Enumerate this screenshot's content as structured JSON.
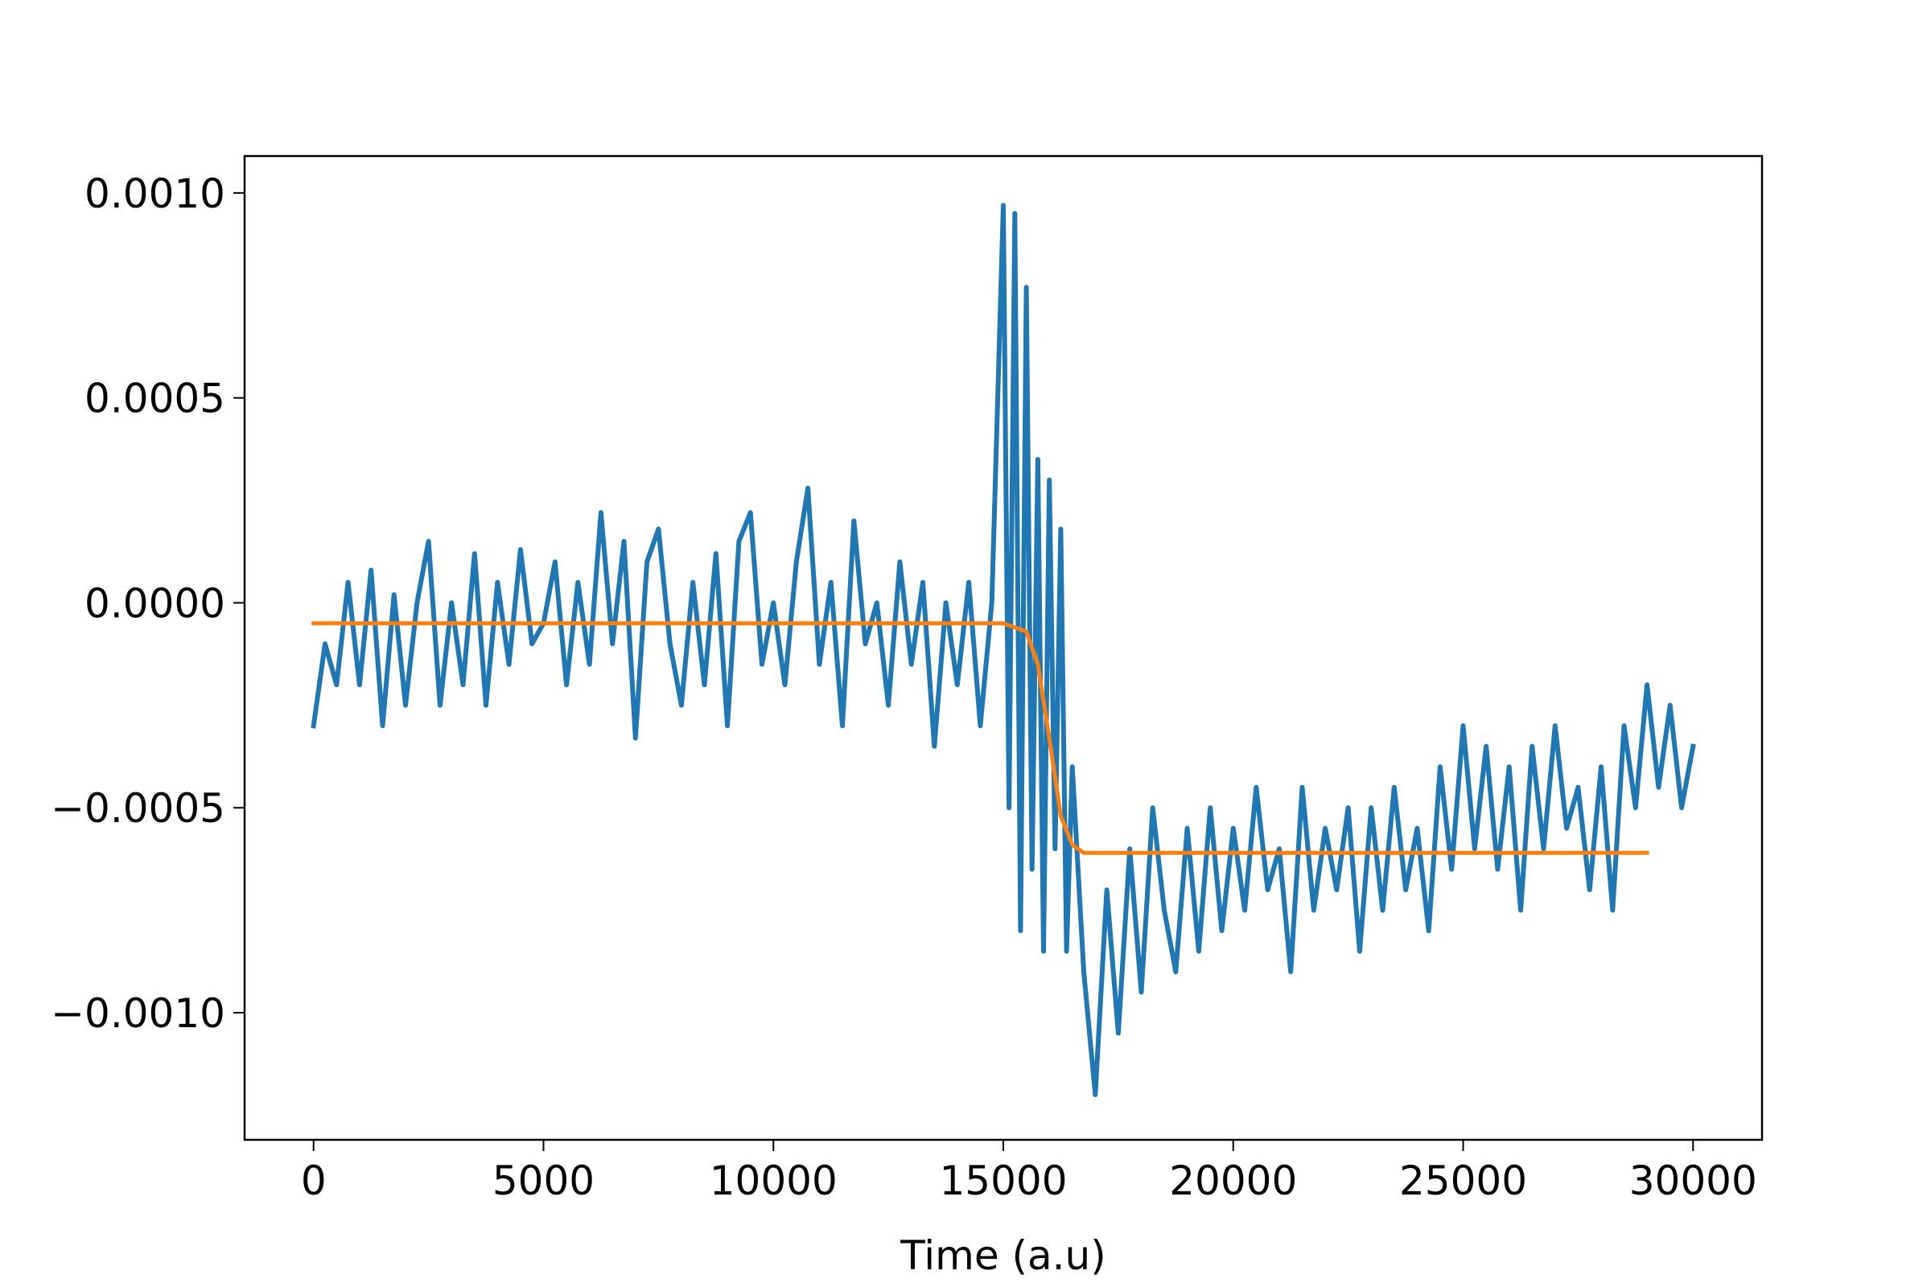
{
  "chart_data": {
    "type": "line",
    "xlabel": "Time (a.u)",
    "xlim": [
      -1500,
      31500
    ],
    "xticks": [
      0,
      5000,
      10000,
      15000,
      20000,
      25000,
      30000
    ],
    "ylim": [
      -0.00131,
      0.00109
    ],
    "yticks": [
      {
        "value": 0.001,
        "label": "0.0010"
      },
      {
        "value": 0.0005,
        "label": "0.0005"
      },
      {
        "value": 0,
        "label": "0.0000"
      },
      {
        "value": -0.0005,
        "label": "−0.0005"
      },
      {
        "value": -0.001,
        "label": "−0.0010"
      }
    ],
    "series": [
      {
        "color": "#1f77b4",
        "x": [
          0,
          250,
          500,
          750,
          1000,
          1250,
          1500,
          1750,
          2000,
          2250,
          2500,
          2750,
          3000,
          3250,
          3500,
          3750,
          4000,
          4250,
          4500,
          4750,
          5000,
          5250,
          5500,
          5750,
          6000,
          6250,
          6500,
          6750,
          7000,
          7250,
          7500,
          7750,
          8000,
          8250,
          8500,
          8750,
          9000,
          9250,
          9500,
          9750,
          10000,
          10250,
          10500,
          10750,
          11000,
          11250,
          11500,
          11750,
          12000,
          12250,
          12500,
          12750,
          13000,
          13250,
          13500,
          13750,
          14000,
          14250,
          14500,
          14750,
          15000,
          15125,
          15250,
          15375,
          15500,
          15625,
          15750,
          15875,
          16000,
          16125,
          16250,
          16375,
          16500,
          16750,
          17000,
          17250,
          17500,
          17750,
          18000,
          18250,
          18500,
          18750,
          19000,
          19250,
          19500,
          19750,
          20000,
          20250,
          20500,
          20750,
          21000,
          21250,
          21500,
          21750,
          22000,
          22250,
          22500,
          22750,
          23000,
          23250,
          23500,
          23750,
          24000,
          24250,
          24500,
          24750,
          25000,
          25250,
          25500,
          25750,
          26000,
          26250,
          26500,
          26750,
          27000,
          27250,
          27500,
          27750,
          28000,
          28250,
          28500,
          28750,
          29000,
          29250,
          29500,
          29750,
          30000
        ],
        "values": [
          -0.0003,
          -0.0001,
          -0.0002,
          5e-05,
          -0.0002,
          8e-05,
          -0.0003,
          2e-05,
          -0.00025,
          0,
          0.00015,
          -0.00025,
          0,
          -0.0002,
          0.00012,
          -0.00025,
          5e-05,
          -0.00015,
          0.00013,
          -0.0001,
          -5e-05,
          0.0001,
          -0.0002,
          5e-05,
          -0.00015,
          0.00022,
          -0.0001,
          0.00015,
          -0.00033,
          0.0001,
          0.00018,
          -0.0001,
          -0.00025,
          5e-05,
          -0.0002,
          0.00012,
          -0.0003,
          0.00015,
          0.00022,
          -0.00015,
          0,
          -0.0002,
          0.0001,
          0.00028,
          -0.00015,
          5e-05,
          -0.0003,
          0.0002,
          -0.0001,
          0,
          -0.00025,
          0.0001,
          -0.00015,
          5e-05,
          -0.00035,
          0,
          -0.0002,
          5e-05,
          -0.0003,
          0,
          0.00097,
          -0.0005,
          0.00095,
          -0.0008,
          0.00077,
          -0.00065,
          0.00035,
          -0.00085,
          0.0003,
          -0.0006,
          0.00018,
          -0.00085,
          -0.0004,
          -0.0009,
          -0.0012,
          -0.0007,
          -0.00105,
          -0.0006,
          -0.00095,
          -0.0005,
          -0.00075,
          -0.0009,
          -0.00055,
          -0.00085,
          -0.0005,
          -0.0008,
          -0.00055,
          -0.00075,
          -0.00045,
          -0.0007,
          -0.0006,
          -0.0009,
          -0.00045,
          -0.00075,
          -0.00055,
          -0.0007,
          -0.0005,
          -0.00085,
          -0.0005,
          -0.00075,
          -0.00045,
          -0.0007,
          -0.00055,
          -0.0008,
          -0.0004,
          -0.00065,
          -0.0003,
          -0.0006,
          -0.00035,
          -0.00065,
          -0.0004,
          -0.00075,
          -0.00035,
          -0.0006,
          -0.0003,
          -0.00055,
          -0.00045,
          -0.0007,
          -0.0004,
          -0.00075,
          -0.0003,
          -0.0005,
          -0.0002,
          -0.00045,
          -0.00025,
          -0.0005,
          -0.00035
        ]
      },
      {
        "color": "#ff7f0e",
        "x": [
          0,
          15000,
          15500,
          15750,
          16000,
          16250,
          16500,
          16750,
          17000,
          29000
        ],
        "values": [
          -5e-05,
          -5e-05,
          -7e-05,
          -0.00015,
          -0.00033,
          -0.00052,
          -0.00059,
          -0.00061,
          -0.00061,
          -0.00061
        ]
      }
    ]
  }
}
